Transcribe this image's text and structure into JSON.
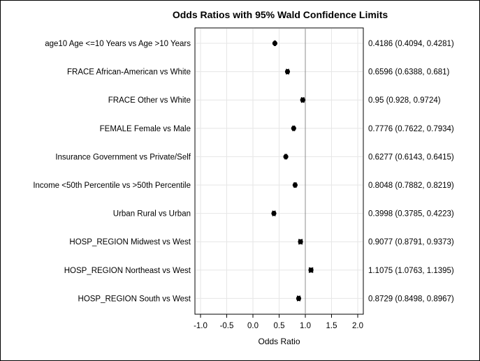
{
  "chart_data": {
    "type": "scatter",
    "title": "Odds Ratios with 95% Wald Confidence Limits",
    "xlabel": "Odds Ratio",
    "ylabel": "",
    "xlim": [
      -1.0,
      2.0
    ],
    "xticks": [
      "-1.0",
      "-0.5",
      "0.0",
      "0.5",
      "1.0",
      "1.5",
      "2.0"
    ],
    "reference_line": 1.0,
    "grid": true,
    "categories": [
      "age10 Age <=10 Years vs Age >10 Years",
      "FRACE African-American vs White",
      "FRACE Other vs White",
      "FEMALE Female vs Male",
      "Insurance Government vs Private/Self",
      "Income <50th Percentile vs >50th Percentile",
      "Urban Rural vs Urban",
      "HOSP_REGION Midwest vs West",
      "HOSP_REGION Northeast vs West",
      "HOSP_REGION South vs West"
    ],
    "estimates": [
      0.4186,
      0.6596,
      0.95,
      0.7776,
      0.6277,
      0.8048,
      0.3998,
      0.9077,
      1.1075,
      0.8729
    ],
    "lower": [
      0.4094,
      0.6388,
      0.928,
      0.7622,
      0.6143,
      0.7882,
      0.3785,
      0.8791,
      1.0763,
      0.8498
    ],
    "upper": [
      0.4281,
      0.681,
      0.9724,
      0.7934,
      0.6415,
      0.8219,
      0.4223,
      0.9373,
      1.1395,
      0.8967
    ],
    "value_labels": [
      "0.4186 (0.4094, 0.4281)",
      "0.6596 (0.6388, 0.681)",
      "0.95 (0.928, 0.9724)",
      "0.7776 (0.7622, 0.7934)",
      "0.6277 (0.6143, 0.6415)",
      "0.8048 (0.7882, 0.8219)",
      "0.3998 (0.3785, 0.4223)",
      "0.9077 (0.8791, 0.9373)",
      "1.1075 (1.0763, 1.1395)",
      "0.8729 (0.8498, 0.8967)"
    ],
    "colors": {
      "marker": "#000000",
      "grid": "#e6e6e6",
      "reference_line": "#8c8c8c",
      "axis": "#000000"
    }
  }
}
